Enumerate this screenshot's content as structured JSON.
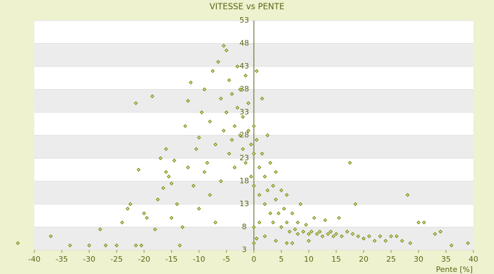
{
  "chart_data": {
    "type": "scatter",
    "title": "VITESSE vs PENTE",
    "xlabel": "Pente [%]",
    "color": "#6b7a00",
    "xlim": [
      -40,
      40
    ],
    "ylim": [
      3,
      53
    ],
    "xticks": [
      -40,
      -35,
      -30,
      -25,
      -20,
      -15,
      -10,
      -5,
      0,
      5,
      10,
      15,
      20,
      25,
      30,
      35,
      40
    ],
    "yticks": [
      3,
      8,
      13,
      18,
      23,
      28,
      33,
      38,
      43,
      48,
      53
    ],
    "bands": true,
    "x": [
      -43,
      -37,
      -33.5,
      -30,
      -28,
      -27,
      -25,
      -24,
      -23,
      -22.5,
      -21.5,
      -21,
      -21.5,
      -20.5,
      -20,
      -19.5,
      -18.5,
      -18,
      -17.5,
      -17,
      -16.5,
      -16,
      -16,
      -15.5,
      -15,
      -15,
      -14.5,
      -14,
      -13.5,
      -13,
      -12.5,
      -12,
      -12,
      -11.5,
      -11,
      -10.5,
      -10,
      -10,
      -9.5,
      -9,
      -9,
      -8.5,
      -8,
      -8,
      -7.5,
      -7,
      -7,
      -6.5,
      -6,
      -6,
      -5.5,
      -5.5,
      -5,
      -5,
      -4.5,
      -4.5,
      -4,
      -4,
      -3.5,
      -3.5,
      -3,
      -3,
      -2.5,
      -2.5,
      -2,
      -2,
      -1.5,
      -1.5,
      -1,
      -1,
      -0.5,
      -0.5,
      0,
      0,
      0,
      0,
      0.5,
      0.5,
      1,
      1,
      1.5,
      1.5,
      2,
      2,
      2.5,
      2.5,
      3,
      3,
      3.5,
      3.5,
      4,
      4,
      4.5,
      5,
      5,
      5.5,
      6,
      6,
      6.5,
      7,
      7.5,
      8,
      8,
      8.5,
      9,
      9.5,
      10,
      10.5,
      11,
      11.5,
      12,
      12.5,
      13,
      13.5,
      14,
      14.5,
      15,
      15.5,
      16,
      17,
      17.5,
      18,
      18.5,
      19,
      20,
      21,
      22,
      23,
      24,
      25,
      26,
      27,
      28,
      28.5,
      30,
      31,
      33,
      34,
      36,
      39,
      0,
      0.5,
      1,
      2,
      4,
      6,
      7,
      10
    ],
    "values": [
      4.5,
      6,
      4,
      4,
      7.5,
      4,
      4,
      9,
      12,
      13,
      4,
      20.5,
      35,
      4,
      11,
      10,
      36.5,
      7.5,
      14,
      23,
      16.5,
      25,
      20,
      19,
      10,
      17.5,
      22.5,
      13,
      4,
      8,
      30,
      21,
      35.5,
      39.5,
      17,
      25,
      12,
      27.5,
      33,
      20,
      38,
      22,
      15,
      31,
      42,
      26,
      9,
      44,
      36,
      18,
      47.5,
      29,
      46.5,
      33,
      24,
      40,
      37,
      27,
      30,
      21,
      43,
      34,
      28,
      38,
      25,
      32,
      41,
      22,
      29,
      35,
      26,
      19,
      30,
      24,
      17,
      4.5,
      42,
      27,
      21,
      15,
      36,
      24,
      19,
      13,
      28,
      16,
      22,
      11,
      17,
      9,
      14,
      20,
      11,
      16,
      8,
      12,
      9,
      15,
      7,
      11,
      7.5,
      9,
      6.5,
      13,
      7,
      8.5,
      6.5,
      7,
      10,
      6.5,
      7,
      6,
      9.5,
      6.5,
      7,
      6,
      6.5,
      10,
      6,
      7,
      22,
      6.5,
      13,
      6,
      5.5,
      6,
      5,
      6,
      5,
      6,
      6,
      5,
      15,
      4.5,
      9,
      9,
      6.5,
      7,
      4,
      4.5,
      8,
      5.5,
      9,
      6,
      5,
      4.5,
      4.5,
      5
    ]
  }
}
